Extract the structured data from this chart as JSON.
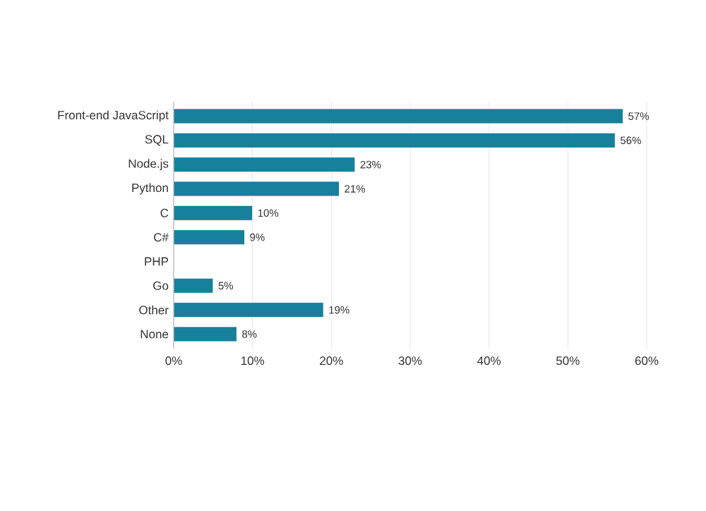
{
  "chart_data": {
    "type": "bar",
    "orientation": "horizontal",
    "categories": [
      "Front-end JavaScript",
      "SQL",
      "Node.js",
      "Python",
      "C",
      "C#",
      "PHP",
      "Go",
      "Other",
      "None"
    ],
    "values": [
      57,
      56,
      23,
      21,
      10,
      9,
      null,
      5,
      19,
      8
    ],
    "value_labels": [
      "57%",
      "56%",
      "23%",
      "21%",
      "10%",
      "9%",
      null,
      "5%",
      "19%",
      "8%"
    ],
    "color": "#17809b",
    "xlim": [
      0,
      60
    ],
    "xticks": [
      {
        "value": 0,
        "label": "0%"
      },
      {
        "value": 10,
        "label": "10%"
      },
      {
        "value": 20,
        "label": "20%"
      },
      {
        "value": 30,
        "label": "30%"
      },
      {
        "value": 40,
        "label": "40%"
      },
      {
        "value": 50,
        "label": "50%"
      },
      {
        "value": 60,
        "label": "60%"
      }
    ],
    "grid": "x"
  }
}
